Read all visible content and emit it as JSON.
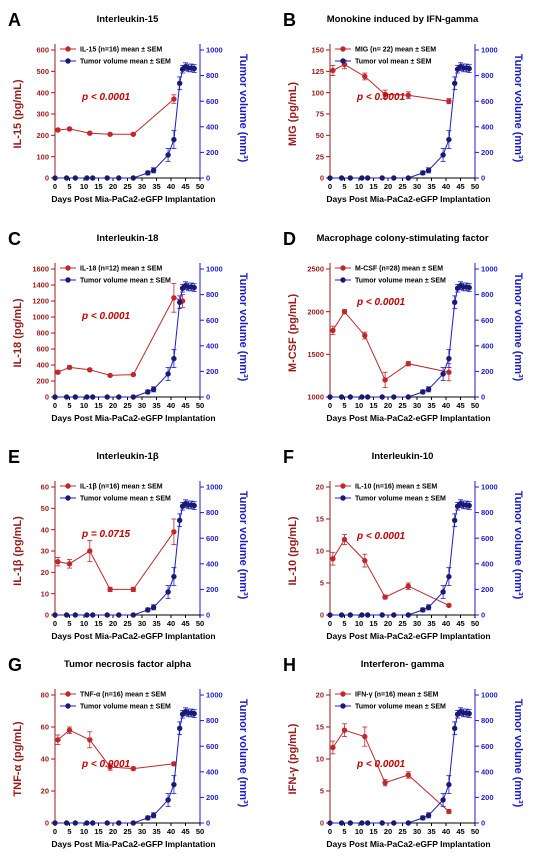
{
  "colors": {
    "cytokine": "#c0282c",
    "cytokine_axis": "#9b1b1b",
    "tumor": "#1c1ccc",
    "tumor_marker": "#1a1a6e",
    "pvalue": "#c40000"
  },
  "chart_data": [
    {
      "type": "line",
      "letter": "A",
      "title": "Interleukin-15",
      "xlabel": "Days Post Mia-PaCa2-eGFP Implantation",
      "ylabel": "IL-15 (pg/mL)",
      "y2label": "Tumor volume (mm³)",
      "pvalue": "p < 0.0001",
      "xlim": [
        0,
        50
      ],
      "xticks": [
        0,
        5,
        10,
        15,
        20,
        25,
        30,
        35,
        40,
        45,
        50
      ],
      "ylim": [
        0,
        600
      ],
      "yticks": [
        0,
        100,
        200,
        300,
        400,
        500,
        600
      ],
      "y2lim": [
        0,
        1000
      ],
      "y2ticks": [
        0,
        200,
        400,
        600,
        800,
        1000
      ],
      "series": [
        {
          "name": "IL-15 (n=16) mean ± SEM",
          "axis": "left",
          "x": [
            1,
            5,
            12,
            19,
            27,
            41
          ],
          "y": [
            225,
            230,
            210,
            205,
            205,
            370
          ],
          "err": [
            5,
            5,
            5,
            4,
            4,
            20
          ]
        },
        {
          "name": "Tumor volume  mean ± SEM",
          "axis": "right",
          "x": [
            0,
            4,
            7,
            11,
            13,
            18,
            22,
            27,
            32,
            34,
            39,
            41,
            43,
            44,
            45,
            46,
            47,
            48
          ],
          "y": [
            0,
            0,
            0,
            0,
            0,
            0,
            0,
            0,
            40,
            60,
            180,
            300,
            740,
            850,
            870,
            860,
            860,
            855
          ],
          "err": [
            0,
            0,
            0,
            0,
            0,
            0,
            0,
            0,
            15,
            20,
            50,
            70,
            50,
            30,
            30,
            30,
            30,
            30
          ]
        }
      ]
    },
    {
      "type": "line",
      "letter": "B",
      "title": "Monokine induced by IFN-gamma",
      "xlabel": "Days Post Mia-PaCa2-eGFP Implantation",
      "ylabel": "MIG (pg/mL)",
      "y2label": "Tumor volume (mm³)",
      "pvalue": "p < 0.0001",
      "xlim": [
        0,
        50
      ],
      "xticks": [
        0,
        5,
        10,
        15,
        20,
        25,
        30,
        35,
        40,
        45,
        50
      ],
      "ylim": [
        0,
        150
      ],
      "yticks": [
        0,
        25,
        50,
        75,
        100,
        125,
        150
      ],
      "y2lim": [
        0,
        1000
      ],
      "y2ticks": [
        0,
        200,
        400,
        600,
        800,
        1000
      ],
      "series": [
        {
          "name": "MIG (n= 22) mean ± SEM",
          "axis": "left",
          "x": [
            1,
            5,
            12,
            19,
            27,
            41
          ],
          "y": [
            126,
            133,
            119,
            98,
            97,
            90
          ],
          "err": [
            6,
            5,
            4,
            5,
            4,
            3
          ]
        },
        {
          "name": "Tumor vol mean ± SEM",
          "axis": "right",
          "x": [
            0,
            4,
            7,
            11,
            13,
            18,
            22,
            27,
            32,
            34,
            39,
            41,
            43,
            44,
            45,
            46,
            47,
            48
          ],
          "y": [
            0,
            0,
            0,
            0,
            0,
            0,
            0,
            0,
            40,
            60,
            180,
            300,
            740,
            850,
            870,
            860,
            860,
            855
          ],
          "err": [
            0,
            0,
            0,
            0,
            0,
            0,
            0,
            0,
            15,
            20,
            50,
            70,
            50,
            30,
            30,
            30,
            30,
            30
          ]
        }
      ]
    },
    {
      "type": "line",
      "letter": "C",
      "title": "Interleukin-18",
      "xlabel": "Days Post Mia-PaCa2-eGFP Implantation",
      "ylabel": "IL-18 (pg/mL)",
      "y2label": "Tumor volume (mm³)",
      "pvalue": "p < 0.0001",
      "xlim": [
        0,
        50
      ],
      "xticks": [
        0,
        5,
        10,
        15,
        20,
        25,
        30,
        35,
        40,
        45,
        50
      ],
      "ylim": [
        0,
        1600
      ],
      "yticks": [
        0,
        200,
        400,
        600,
        800,
        1000,
        1200,
        1400,
        1600
      ],
      "y2lim": [
        0,
        1000
      ],
      "y2ticks": [
        0,
        200,
        400,
        600,
        800,
        1000
      ],
      "series": [
        {
          "name": "IL-18 (n=12) mean ± SEM",
          "axis": "left",
          "x": [
            1,
            5,
            12,
            19,
            27,
            41,
            44
          ],
          "y": [
            310,
            370,
            340,
            270,
            280,
            1240,
            1200
          ],
          "err": [
            20,
            20,
            15,
            15,
            15,
            180,
            80
          ]
        },
        {
          "name": "Tumor volume  mean ± SEM",
          "axis": "right",
          "x": [
            0,
            4,
            7,
            11,
            13,
            18,
            22,
            27,
            32,
            34,
            39,
            41,
            43,
            44,
            45,
            46,
            47,
            48
          ],
          "y": [
            0,
            0,
            0,
            0,
            0,
            0,
            0,
            0,
            40,
            60,
            180,
            300,
            740,
            850,
            870,
            860,
            860,
            855
          ],
          "err": [
            0,
            0,
            0,
            0,
            0,
            0,
            0,
            0,
            15,
            20,
            50,
            70,
            50,
            30,
            30,
            30,
            30,
            30
          ]
        }
      ]
    },
    {
      "type": "line",
      "letter": "D",
      "title": "Macrophage colony-stimulating factor",
      "xlabel": "Days Post Mia-PaCa2-eGFP Implantation",
      "ylabel": "M-CSF (pg/mL)",
      "y2label": "Tumor volume (mm³)",
      "pvalue": "p < 0.0001",
      "xlim": [
        0,
        50
      ],
      "xticks": [
        0,
        5,
        10,
        15,
        20,
        25,
        30,
        35,
        40,
        45,
        50
      ],
      "ylim": [
        1000,
        2500
      ],
      "yticks": [
        1000,
        1500,
        2000,
        2500
      ],
      "y2lim": [
        0,
        1000
      ],
      "y2ticks": [
        0,
        200,
        400,
        600,
        800,
        1000
      ],
      "series": [
        {
          "name": "M-CSF (n=28) mean ± SEM",
          "axis": "left",
          "x": [
            1,
            5,
            12,
            19,
            27,
            41
          ],
          "y": [
            1780,
            2000,
            1720,
            1200,
            1390,
            1290
          ],
          "err": [
            50,
            25,
            40,
            90,
            25,
            100
          ]
        },
        {
          "name": "Tumor volume  mean ± SEM",
          "axis": "right",
          "x": [
            0,
            4,
            7,
            11,
            13,
            18,
            22,
            27,
            32,
            34,
            39,
            41,
            43,
            44,
            45,
            46,
            47,
            48
          ],
          "y": [
            0,
            0,
            0,
            0,
            0,
            0,
            0,
            0,
            40,
            60,
            180,
            300,
            740,
            850,
            870,
            860,
            860,
            855
          ],
          "err": [
            0,
            0,
            0,
            0,
            0,
            0,
            0,
            0,
            15,
            20,
            50,
            70,
            50,
            30,
            30,
            30,
            30,
            30
          ]
        }
      ]
    },
    {
      "type": "line",
      "letter": "E",
      "title": "Interleukin-1β",
      "xlabel": "Days Post Mia-PaCa2-eGFP Implantation",
      "ylabel": "IL-1β (pg/mL)",
      "y2label": "Tumor volume (mm³)",
      "pvalue": "p = 0.0715",
      "xlim": [
        0,
        50
      ],
      "xticks": [
        0,
        5,
        10,
        15,
        20,
        25,
        30,
        35,
        40,
        45,
        50
      ],
      "ylim": [
        0,
        60
      ],
      "yticks": [
        0,
        10,
        20,
        30,
        40,
        50,
        60
      ],
      "y2lim": [
        0,
        1000
      ],
      "y2ticks": [
        0,
        200,
        400,
        600,
        800,
        1000
      ],
      "series": [
        {
          "name": "IL-1β (n=16) mean ± SEM",
          "axis": "left",
          "x": [
            1,
            5,
            12,
            19,
            27,
            41
          ],
          "y": [
            25,
            24,
            30,
            12,
            12,
            39
          ],
          "err": [
            2,
            2,
            5,
            1,
            1,
            6
          ]
        },
        {
          "name": "Tumor volume  mean ± SEM",
          "axis": "right",
          "x": [
            0,
            4,
            7,
            11,
            13,
            18,
            22,
            27,
            32,
            34,
            39,
            41,
            43,
            44,
            45,
            46,
            47,
            48
          ],
          "y": [
            0,
            0,
            0,
            0,
            0,
            0,
            0,
            0,
            40,
            60,
            180,
            300,
            740,
            850,
            870,
            860,
            860,
            855
          ],
          "err": [
            0,
            0,
            0,
            0,
            0,
            0,
            0,
            0,
            15,
            20,
            50,
            70,
            50,
            30,
            30,
            30,
            30,
            30
          ]
        }
      ]
    },
    {
      "type": "line",
      "letter": "F",
      "title": "Interleukin-10",
      "xlabel": "Days Post Mia-PaCa2-eGFP Implantation",
      "ylabel": "IL-10 (pg/mL)",
      "y2label": "Tumor volume (mm³)",
      "pvalue": "p < 0.0001",
      "xlim": [
        0,
        50
      ],
      "xticks": [
        0,
        5,
        10,
        15,
        20,
        25,
        30,
        35,
        40,
        45,
        50
      ],
      "ylim": [
        0,
        20
      ],
      "yticks": [
        0,
        5,
        10,
        15,
        20
      ],
      "y2lim": [
        0,
        1000
      ],
      "y2ticks": [
        0,
        200,
        400,
        600,
        800,
        1000
      ],
      "series": [
        {
          "name": "IL-10 (n=16) mean ± SEM",
          "axis": "left",
          "x": [
            1,
            5,
            12,
            19,
            27,
            41
          ],
          "y": [
            8.8,
            11.8,
            8.5,
            2.8,
            4.5,
            1.5
          ],
          "err": [
            1,
            0.8,
            1,
            0.3,
            0.5,
            0.2
          ]
        },
        {
          "name": "Tumor volume  mean ± SEM",
          "axis": "right",
          "x": [
            0,
            4,
            7,
            11,
            13,
            18,
            22,
            27,
            32,
            34,
            39,
            41,
            43,
            44,
            45,
            46,
            47,
            48
          ],
          "y": [
            0,
            0,
            0,
            0,
            0,
            0,
            0,
            0,
            40,
            60,
            180,
            300,
            740,
            850,
            870,
            860,
            860,
            855
          ],
          "err": [
            0,
            0,
            0,
            0,
            0,
            0,
            0,
            0,
            15,
            20,
            50,
            70,
            50,
            30,
            30,
            30,
            30,
            30
          ]
        }
      ]
    },
    {
      "type": "line",
      "letter": "G",
      "title": "Tumor necrosis factor alpha",
      "xlabel": "Days Post Mia-PaCa2-eGFP Implantation",
      "ylabel": "TNF-α (pg/mL)",
      "y2label": "Tumor volume (mm³)",
      "pvalue": "p < 0.0001",
      "xlim": [
        0,
        50
      ],
      "xticks": [
        0,
        5,
        10,
        15,
        20,
        25,
        30,
        35,
        40,
        45,
        50
      ],
      "ylim": [
        0,
        80
      ],
      "yticks": [
        0,
        20,
        40,
        60,
        80
      ],
      "y2lim": [
        0,
        1000
      ],
      "y2ticks": [
        0,
        200,
        400,
        600,
        800,
        1000
      ],
      "series": [
        {
          "name": "TNF-α (n=16) mean ± SEM",
          "axis": "left",
          "x": [
            1,
            5,
            12,
            19,
            27,
            41
          ],
          "y": [
            52,
            58,
            52,
            35,
            34,
            37
          ],
          "err": [
            3,
            2,
            5,
            2,
            1,
            1
          ]
        },
        {
          "name": "Tumor volume  mean ± SEM",
          "axis": "right",
          "x": [
            0,
            4,
            7,
            11,
            13,
            18,
            22,
            27,
            32,
            34,
            39,
            41,
            43,
            44,
            45,
            46,
            47,
            48
          ],
          "y": [
            0,
            0,
            0,
            0,
            0,
            0,
            0,
            0,
            40,
            60,
            180,
            300,
            740,
            850,
            870,
            860,
            860,
            855
          ],
          "err": [
            0,
            0,
            0,
            0,
            0,
            0,
            0,
            0,
            15,
            20,
            50,
            70,
            50,
            30,
            30,
            30,
            30,
            30
          ]
        }
      ]
    },
    {
      "type": "line",
      "letter": "H",
      "title": "Interferon- gamma",
      "xlabel": "Days Post Mia-PaCa2-eGFP Implantation",
      "ylabel": "IFN-γ (pg/mL)",
      "y2label": "Tumor volume (mm³)",
      "pvalue": "p < 0.0001",
      "xlim": [
        0,
        50
      ],
      "xticks": [
        0,
        5,
        10,
        15,
        20,
        25,
        30,
        35,
        40,
        45,
        50
      ],
      "ylim": [
        0,
        20
      ],
      "yticks": [
        0,
        5,
        10,
        15,
        20
      ],
      "y2lim": [
        0,
        1000
      ],
      "y2ticks": [
        0,
        200,
        400,
        600,
        800,
        1000
      ],
      "series": [
        {
          "name": "IFN-γ (n=16) mean ± SEM",
          "axis": "left",
          "x": [
            1,
            5,
            12,
            19,
            27,
            41
          ],
          "y": [
            11.8,
            14.5,
            13.5,
            6.3,
            7.5,
            1.8
          ],
          "err": [
            1,
            1,
            1.5,
            0.5,
            0.5,
            0.3
          ]
        },
        {
          "name": "Tumor volume  mean ± SEM",
          "axis": "right",
          "x": [
            0,
            4,
            7,
            11,
            13,
            18,
            22,
            27,
            32,
            34,
            39,
            41,
            43,
            44,
            45,
            46,
            47,
            48
          ],
          "y": [
            0,
            0,
            0,
            0,
            0,
            0,
            0,
            0,
            40,
            60,
            180,
            300,
            740,
            850,
            870,
            860,
            860,
            855
          ],
          "err": [
            0,
            0,
            0,
            0,
            0,
            0,
            0,
            0,
            15,
            20,
            50,
            70,
            50,
            30,
            30,
            30,
            30,
            30
          ]
        }
      ]
    }
  ]
}
